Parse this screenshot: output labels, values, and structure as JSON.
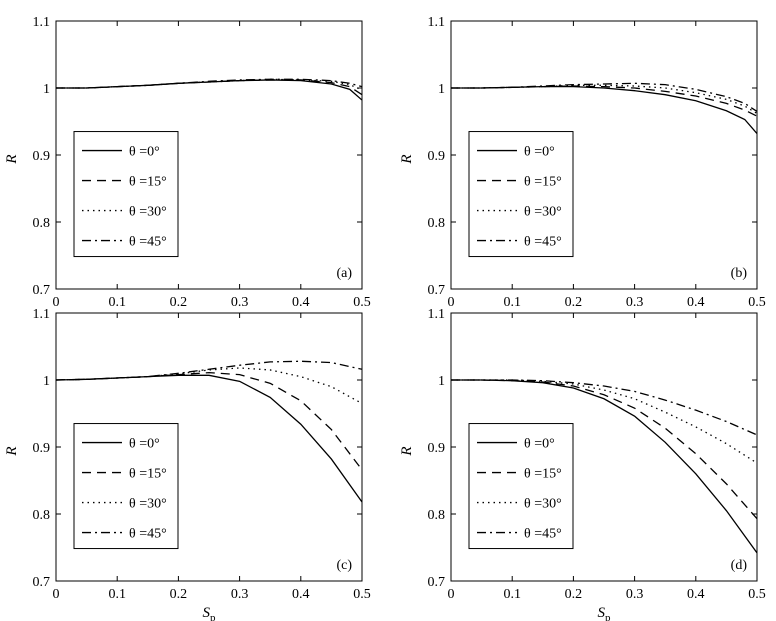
{
  "chart_data": [
    {
      "type": "line",
      "panel_label": "(a)",
      "xlabel": "",
      "ylabel": "R",
      "xlim": [
        0,
        0.5
      ],
      "ylim": [
        0.7,
        1.1
      ],
      "xticks": [
        "0",
        "0.1",
        "0.2",
        "0.3",
        "0.4",
        "0.5"
      ],
      "yticks": [
        "0.7",
        "0.8",
        "0.9",
        "1",
        "1.1"
      ],
      "legend_position": "lower-left",
      "x": [
        0,
        0.05,
        0.1,
        0.15,
        0.2,
        0.25,
        0.3,
        0.35,
        0.4,
        0.45,
        0.48,
        0.5
      ],
      "series": [
        {
          "name": "θ =0°",
          "style": "solid",
          "values": [
            1.0,
            1.0,
            1.002,
            1.004,
            1.007,
            1.009,
            1.011,
            1.012,
            1.011,
            1.006,
            0.998,
            0.982
          ]
        },
        {
          "name": "θ =15°",
          "style": "dashed",
          "values": [
            1.0,
            1.0,
            1.002,
            1.004,
            1.007,
            1.009,
            1.011,
            1.012,
            1.012,
            1.008,
            1.002,
            0.99
          ]
        },
        {
          "name": "θ =30°",
          "style": "dotted",
          "values": [
            1.0,
            1.0,
            1.002,
            1.004,
            1.007,
            1.009,
            1.011,
            1.013,
            1.012,
            1.01,
            1.005,
            0.997
          ]
        },
        {
          "name": "θ =45°",
          "style": "dashdot",
          "values": [
            1.0,
            1.0,
            1.002,
            1.004,
            1.007,
            1.01,
            1.012,
            1.013,
            1.013,
            1.011,
            1.007,
            1.002
          ]
        }
      ]
    },
    {
      "type": "line",
      "panel_label": "(b)",
      "xlabel": "",
      "ylabel": "R",
      "xlim": [
        0,
        0.5
      ],
      "ylim": [
        0.7,
        1.1
      ],
      "xticks": [
        "0",
        "0.1",
        "0.2",
        "0.3",
        "0.4",
        "0.5"
      ],
      "yticks": [
        "0.7",
        "0.8",
        "0.9",
        "1",
        "1.1"
      ],
      "legend_position": "lower-left",
      "x": [
        0,
        0.05,
        0.1,
        0.15,
        0.2,
        0.25,
        0.3,
        0.35,
        0.4,
        0.45,
        0.48,
        0.5
      ],
      "series": [
        {
          "name": "θ =0°",
          "style": "solid",
          "values": [
            1.0,
            1.0,
            1.001,
            1.002,
            1.002,
            1.0,
            0.996,
            0.99,
            0.981,
            0.966,
            0.953,
            0.932
          ]
        },
        {
          "name": "θ =15°",
          "style": "dashed",
          "values": [
            1.0,
            1.0,
            1.001,
            1.002,
            1.003,
            1.002,
            1.0,
            0.995,
            0.988,
            0.977,
            0.967,
            0.958
          ]
        },
        {
          "name": "θ =30°",
          "style": "dotted",
          "values": [
            1.0,
            1.0,
            1.001,
            1.002,
            1.004,
            1.004,
            1.003,
            1.0,
            0.993,
            0.983,
            0.973,
            0.962
          ]
        },
        {
          "name": "θ =45°",
          "style": "dashdot",
          "values": [
            1.0,
            1.0,
            1.001,
            1.003,
            1.005,
            1.006,
            1.007,
            1.005,
            0.998,
            0.987,
            0.977,
            0.965
          ]
        }
      ]
    },
    {
      "type": "line",
      "panel_label": "(c)",
      "xlabel": "Sp",
      "ylabel": "R",
      "xlim": [
        0,
        0.5
      ],
      "ylim": [
        0.7,
        1.1
      ],
      "xticks": [
        "0",
        "0.1",
        "0.2",
        "0.3",
        "0.4",
        "0.5"
      ],
      "yticks": [
        "0.7",
        "0.8",
        "0.9",
        "1",
        "1.1"
      ],
      "legend_position": "lower-left",
      "x": [
        0,
        0.05,
        0.1,
        0.15,
        0.2,
        0.25,
        0.3,
        0.35,
        0.4,
        0.45,
        0.5
      ],
      "series": [
        {
          "name": "θ =0°",
          "style": "solid",
          "values": [
            1.0,
            1.001,
            1.003,
            1.005,
            1.007,
            1.007,
            0.998,
            0.974,
            0.934,
            0.882,
            0.818
          ]
        },
        {
          "name": "θ =15°",
          "style": "dashed",
          "values": [
            1.0,
            1.001,
            1.003,
            1.005,
            1.008,
            1.011,
            1.008,
            0.995,
            0.969,
            0.926,
            0.866
          ]
        },
        {
          "name": "θ =30°",
          "style": "dotted",
          "values": [
            1.0,
            1.001,
            1.003,
            1.005,
            1.009,
            1.015,
            1.018,
            1.015,
            1.005,
            0.99,
            0.965
          ]
        },
        {
          "name": "θ =45°",
          "style": "dashdot",
          "values": [
            1.0,
            1.001,
            1.003,
            1.005,
            1.01,
            1.016,
            1.022,
            1.027,
            1.028,
            1.026,
            1.016
          ]
        }
      ]
    },
    {
      "type": "line",
      "panel_label": "(d)",
      "xlabel": "Sp",
      "ylabel": "R",
      "xlim": [
        0,
        0.5
      ],
      "ylim": [
        0.7,
        1.1
      ],
      "xticks": [
        "0",
        "0.1",
        "0.2",
        "0.3",
        "0.4",
        "0.5"
      ],
      "yticks": [
        "0.7",
        "0.8",
        "0.9",
        "1",
        "1.1"
      ],
      "legend_position": "lower-left",
      "x": [
        0,
        0.05,
        0.1,
        0.15,
        0.2,
        0.25,
        0.3,
        0.35,
        0.4,
        0.45,
        0.5
      ],
      "series": [
        {
          "name": "θ =0°",
          "style": "solid",
          "values": [
            1.0,
            1.0,
            0.999,
            0.996,
            0.988,
            0.972,
            0.946,
            0.907,
            0.86,
            0.805,
            0.742
          ]
        },
        {
          "name": "θ =15°",
          "style": "dashed",
          "values": [
            1.0,
            1.0,
            0.999,
            0.997,
            0.991,
            0.978,
            0.958,
            0.928,
            0.89,
            0.845,
            0.793
          ]
        },
        {
          "name": "θ =30°",
          "style": "dotted",
          "values": [
            1.0,
            1.0,
            1.0,
            0.998,
            0.994,
            0.985,
            0.972,
            0.952,
            0.93,
            0.905,
            0.876
          ]
        },
        {
          "name": "θ =45°",
          "style": "dashdot",
          "values": [
            1.0,
            1.0,
            1.0,
            0.999,
            0.996,
            0.991,
            0.983,
            0.97,
            0.955,
            0.938,
            0.918
          ]
        }
      ]
    }
  ]
}
